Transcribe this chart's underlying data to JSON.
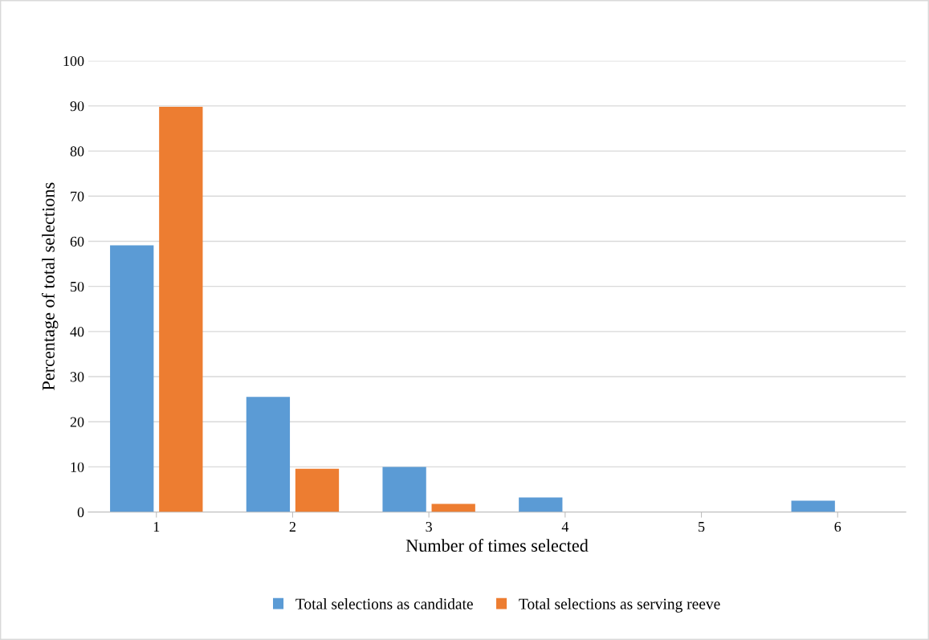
{
  "chart_data": {
    "type": "bar",
    "xlabel": "Number of times selected",
    "ylabel": "Percentage of total selections",
    "categories": [
      "1",
      "2",
      "3",
      "4",
      "5",
      "6"
    ],
    "series": [
      {
        "name": "Total selections as candidate",
        "color": "#5b9bd5",
        "values": [
          59.1,
          25.5,
          10.0,
          3.2,
          0,
          2.5
        ]
      },
      {
        "name": "Total selections as serving reeve",
        "color": "#ed7d31",
        "values": [
          89.8,
          9.6,
          1.8,
          0,
          0,
          0
        ]
      }
    ],
    "ylim": [
      0,
      100
    ],
    "yticks": [
      0,
      10,
      20,
      30,
      40,
      50,
      60,
      70,
      80,
      90,
      100
    ],
    "grid": "y",
    "legend": "bottom"
  }
}
